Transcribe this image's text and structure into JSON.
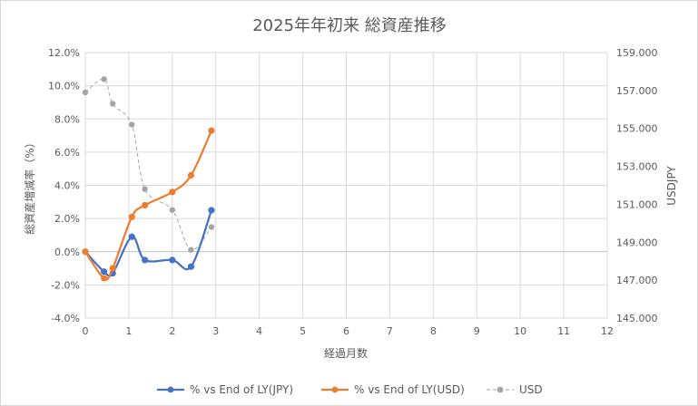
{
  "chart_data": {
    "type": "line",
    "title": "2025年年初来 総資産推移",
    "xlabel": "経過月数",
    "ylabel": "総資産増減率（%）",
    "y2label": "USDJPY",
    "xlim": [
      0,
      12
    ],
    "ylim": [
      -4.0,
      12.0
    ],
    "y2lim": [
      145.0,
      159.0
    ],
    "x_ticks": [
      0,
      1,
      2,
      3,
      4,
      5,
      6,
      7,
      8,
      9,
      10,
      11,
      12
    ],
    "x_tick_labels": [
      "0",
      "1",
      "2",
      "3",
      "4",
      "5",
      "6",
      "7",
      "8",
      "9",
      "10",
      "11",
      "12"
    ],
    "y_ticks": [
      -4,
      -2,
      0,
      2,
      4,
      6,
      8,
      10,
      12
    ],
    "y_tick_labels": [
      "-4.0%",
      "-2.0%",
      "0.0%",
      "2.0%",
      "4.0%",
      "6.0%",
      "8.0%",
      "10.0%",
      "12.0%"
    ],
    "y2_ticks": [
      145,
      147,
      149,
      151,
      153,
      155,
      157,
      159
    ],
    "y2_tick_labels": [
      "145.000",
      "147.000",
      "149.000",
      "151.000",
      "153.000",
      "155.000",
      "157.000",
      "159.000"
    ],
    "grid": true,
    "legend_position": "bottom",
    "series": [
      {
        "name": "% vs End of LY(JPY)",
        "axis": "left",
        "color": "#4472c4",
        "style": "solid",
        "x": [
          0,
          0.43,
          0.63,
          1.07,
          1.37,
          2.0,
          2.43,
          2.9
        ],
        "y": [
          0.0,
          -1.2,
          -1.3,
          0.9,
          -0.5,
          -0.5,
          -0.9,
          2.5
        ]
      },
      {
        "name": "% vs End of LY(USD)",
        "axis": "left",
        "color": "#ed7d31",
        "style": "solid",
        "x": [
          0,
          0.43,
          0.63,
          1.07,
          1.37,
          2.0,
          2.43,
          2.9
        ],
        "y": [
          0.0,
          -1.6,
          -1.0,
          2.1,
          2.8,
          3.6,
          4.6,
          7.3
        ]
      },
      {
        "name": "USD",
        "axis": "right",
        "color": "#a5a5a5",
        "style": "dashed",
        "x": [
          0,
          0.43,
          0.63,
          1.07,
          1.37,
          2.0,
          2.43,
          2.9
        ],
        "y": [
          156.9,
          157.6,
          156.3,
          155.2,
          151.8,
          150.7,
          148.6,
          149.8
        ]
      }
    ]
  }
}
